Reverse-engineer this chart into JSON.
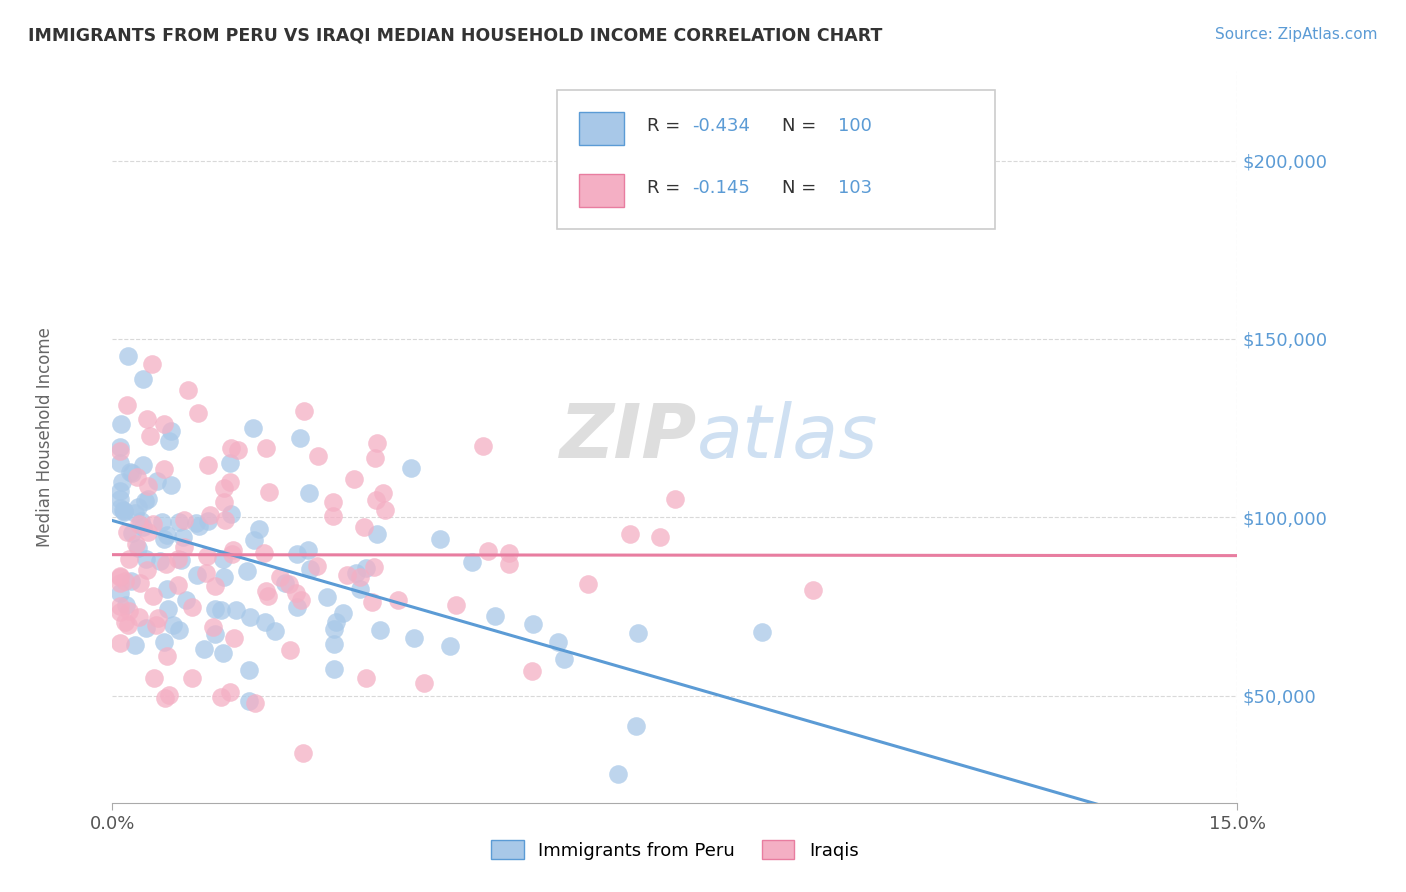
{
  "title": "IMMIGRANTS FROM PERU VS IRAQI MEDIAN HOUSEHOLD INCOME CORRELATION CHART",
  "source_text": "Source: ZipAtlas.com",
  "ylabel": "Median Household Income",
  "legend_label_1": "Immigrants from Peru",
  "legend_label_2": "Iraqis",
  "R1": -0.434,
  "N1": 100,
  "R2": -0.145,
  "N2": 103,
  "color_peru": "#a8c8e8",
  "color_iraq": "#f4afc4",
  "line_color_peru": "#5b9bd5",
  "line_color_iraq": "#e87da0",
  "source_color": "#5b9bd5",
  "ytick_color": "#5b9bd5",
  "watermark_zip": "ZIP",
  "watermark_atlas": "atlas",
  "xlim": [
    0.0,
    0.15
  ],
  "ylim": [
    20000,
    225000
  ],
  "yticks": [
    50000,
    100000,
    150000,
    200000
  ],
  "ytick_labels": [
    "$50,000",
    "$100,000",
    "$150,000",
    "$200,000"
  ],
  "xticks": [
    0.0,
    0.15
  ],
  "xtick_labels": [
    "0.0%",
    "15.0%"
  ],
  "seed": 42,
  "background_color": "#ffffff",
  "grid_color": "#d0d0d0",
  "title_color": "#333333",
  "ylabel_color": "#666666"
}
